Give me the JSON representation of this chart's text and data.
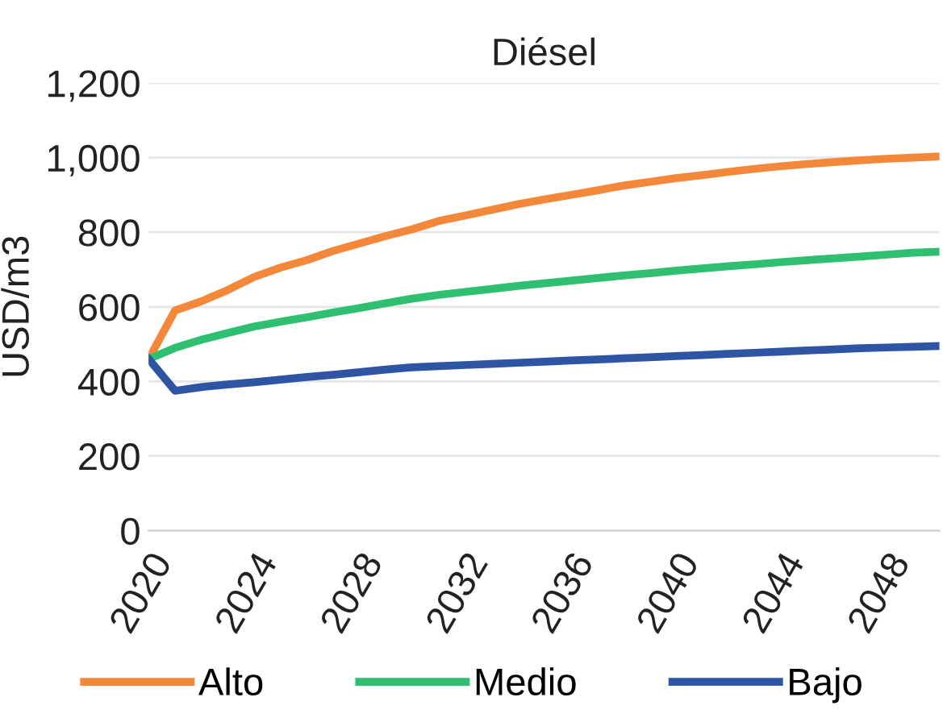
{
  "chart_data": {
    "type": "line",
    "title": "Diésel",
    "ylabel": "USD/m3",
    "x": [
      2020,
      2021,
      2022,
      2023,
      2024,
      2025,
      2026,
      2027,
      2028,
      2029,
      2030,
      2031,
      2032,
      2033,
      2034,
      2035,
      2036,
      2037,
      2038,
      2039,
      2040,
      2041,
      2042,
      2043,
      2044,
      2045,
      2046,
      2047,
      2048,
      2049,
      2050
    ],
    "series": [
      {
        "name": "Alto",
        "color": "#f4883a",
        "values": [
          460,
          590,
          615,
          645,
          680,
          705,
          725,
          750,
          770,
          790,
          808,
          830,
          845,
          860,
          875,
          888,
          900,
          912,
          925,
          935,
          945,
          953,
          962,
          970,
          977,
          983,
          988,
          993,
          997,
          1000,
          1003
        ]
      },
      {
        "name": "Medio",
        "color": "#2fbf71",
        "values": [
          460,
          490,
          512,
          530,
          547,
          560,
          572,
          585,
          597,
          610,
          622,
          632,
          640,
          648,
          656,
          663,
          670,
          677,
          684,
          690,
          697,
          703,
          709,
          714,
          720,
          725,
          730,
          735,
          740,
          745,
          748
        ]
      },
      {
        "name": "Bajo",
        "color": "#2e55a3",
        "values": [
          460,
          375,
          385,
          392,
          398,
          405,
          412,
          418,
          425,
          432,
          438,
          441,
          444,
          447,
          450,
          453,
          456,
          459,
          462,
          465,
          468,
          471,
          474,
          477,
          480,
          483,
          486,
          489,
          491,
          493,
          495
        ]
      }
    ],
    "xlim": [
      2020,
      2050
    ],
    "xticks": [
      2020,
      2024,
      2028,
      2032,
      2036,
      2040,
      2044,
      2048
    ],
    "ylim": [
      0,
      1200
    ],
    "yticks": [
      0,
      {
        "value": 200,
        "label": "200"
      },
      {
        "value": 400,
        "label": "400"
      },
      {
        "value": 600,
        "label": "600"
      },
      {
        "value": 800,
        "label": "800"
      },
      {
        "value": 1000,
        "label": "1,000"
      },
      {
        "value": 1200,
        "label": "1,200"
      }
    ],
    "grid": "y",
    "legend": "bottom",
    "line_style": "solid",
    "marker": "none"
  }
}
